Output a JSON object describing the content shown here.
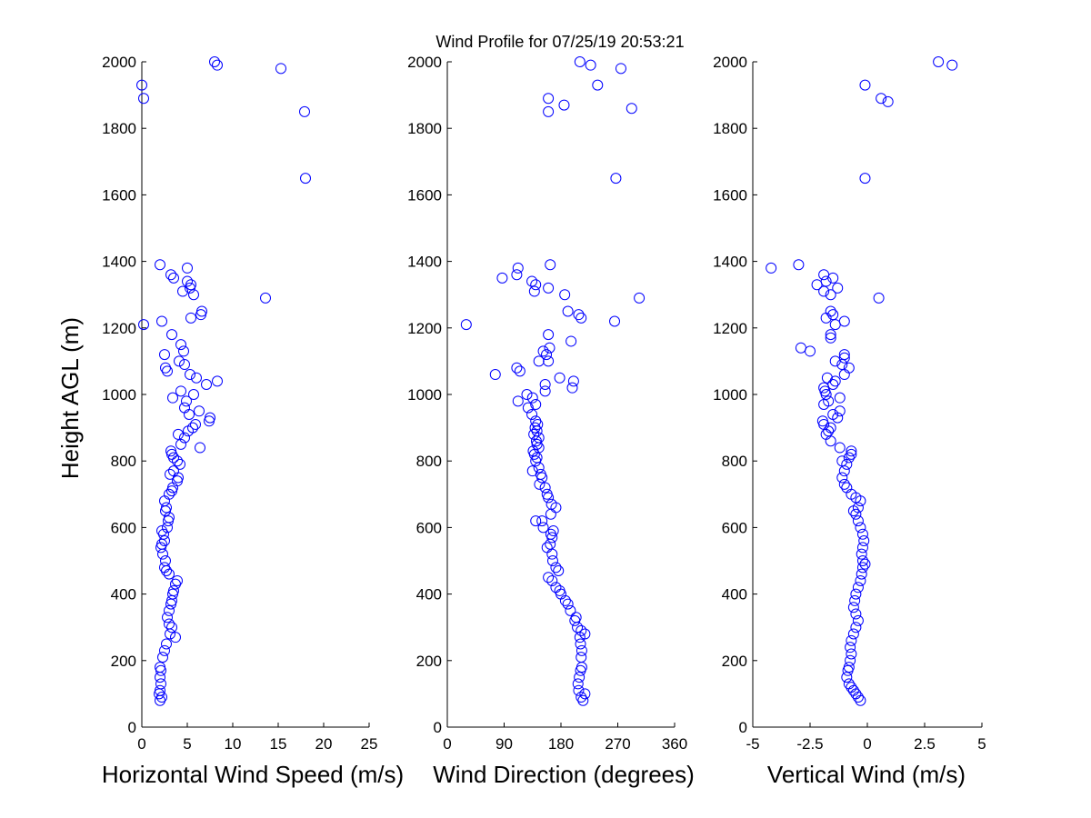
{
  "figure": {
    "title": "Wind Profile for  07/25/19 20:53:21",
    "ylabel": "Height AGL (m)"
  },
  "colors": {
    "marker": "#0000ff",
    "axes": "#000000",
    "background": "#ffffff"
  },
  "chart_data": [
    {
      "type": "scatter",
      "xlabel": "Horizontal Wind Speed (m/s)",
      "ylabel": "Height AGL (m)",
      "xlim": [
        0,
        25
      ],
      "ylim": [
        0,
        2000
      ],
      "xticks": [
        0,
        5,
        10,
        15,
        20,
        25
      ],
      "xtick_labels": [
        "0",
        "5",
        "10",
        "15",
        "20",
        "25"
      ],
      "yticks": [
        0,
        200,
        400,
        600,
        800,
        1000,
        1200,
        1400,
        1600,
        1800,
        2000
      ],
      "ytick_labels": [
        "0",
        "200",
        "400",
        "600",
        "800",
        "1000",
        "1200",
        "1400",
        "1600",
        "1800",
        "2000"
      ],
      "points": [
        [
          2,
          80
        ],
        [
          2.2,
          90
        ],
        [
          1.9,
          100
        ],
        [
          2,
          110
        ],
        [
          2.1,
          130
        ],
        [
          2,
          150
        ],
        [
          2.1,
          170
        ],
        [
          2,
          180
        ],
        [
          2.3,
          210
        ],
        [
          2.5,
          230
        ],
        [
          2.7,
          250
        ],
        [
          3.7,
          270
        ],
        [
          3.1,
          280
        ],
        [
          3.3,
          300
        ],
        [
          3,
          310
        ],
        [
          2.8,
          330
        ],
        [
          3,
          350
        ],
        [
          3.2,
          370
        ],
        [
          3.3,
          380
        ],
        [
          3.4,
          400
        ],
        [
          3.5,
          410
        ],
        [
          3.7,
          430
        ],
        [
          3.9,
          440
        ],
        [
          3,
          460
        ],
        [
          2.7,
          470
        ],
        [
          2.5,
          480
        ],
        [
          2.6,
          500
        ],
        [
          2.3,
          520
        ],
        [
          2.1,
          540
        ],
        [
          2.2,
          550
        ],
        [
          2.5,
          560
        ],
        [
          2.4,
          580
        ],
        [
          2.2,
          590
        ],
        [
          2.8,
          600
        ],
        [
          2.9,
          620
        ],
        [
          3,
          630
        ],
        [
          2.6,
          650
        ],
        [
          2.7,
          660
        ],
        [
          2.5,
          680
        ],
        [
          3,
          700
        ],
        [
          3.3,
          710
        ],
        [
          3.4,
          720
        ],
        [
          3.9,
          740
        ],
        [
          4,
          750
        ],
        [
          3.1,
          760
        ],
        [
          3.5,
          770
        ],
        [
          4.2,
          790
        ],
        [
          3.9,
          800
        ],
        [
          3.5,
          810
        ],
        [
          3.3,
          820
        ],
        [
          3.2,
          830
        ],
        [
          6.4,
          840
        ],
        [
          4.3,
          850
        ],
        [
          4.7,
          870
        ],
        [
          4,
          880
        ],
        [
          5.1,
          890
        ],
        [
          5.6,
          900
        ],
        [
          5.9,
          910
        ],
        [
          7.4,
          920
        ],
        [
          7.5,
          930
        ],
        [
          5.2,
          940
        ],
        [
          6.3,
          950
        ],
        [
          4.7,
          960
        ],
        [
          4.9,
          980
        ],
        [
          3.4,
          990
        ],
        [
          5.7,
          1000
        ],
        [
          4.3,
          1010
        ],
        [
          7.1,
          1030
        ],
        [
          8.3,
          1040
        ],
        [
          6,
          1050
        ],
        [
          5.3,
          1060
        ],
        [
          2.8,
          1070
        ],
        [
          2.6,
          1080
        ],
        [
          4.7,
          1090
        ],
        [
          4.1,
          1100
        ],
        [
          2.5,
          1120
        ],
        [
          4.6,
          1130
        ],
        [
          4.3,
          1150
        ],
        [
          3.3,
          1180
        ],
        [
          0.2,
          1210
        ],
        [
          2.2,
          1220
        ],
        [
          5.4,
          1230
        ],
        [
          6.5,
          1240
        ],
        [
          6.6,
          1250
        ],
        [
          13.6,
          1290
        ],
        [
          5.7,
          1300
        ],
        [
          4.5,
          1310
        ],
        [
          5.3,
          1320
        ],
        [
          5.4,
          1330
        ],
        [
          5,
          1340
        ],
        [
          3.5,
          1350
        ],
        [
          3.2,
          1360
        ],
        [
          5,
          1380
        ],
        [
          2,
          1390
        ],
        [
          18,
          1650
        ],
        [
          17.9,
          1850
        ],
        [
          0.2,
          1890
        ],
        [
          0,
          1930
        ],
        [
          15.3,
          1980
        ],
        [
          8.3,
          1990
        ],
        [
          8,
          2000
        ]
      ]
    },
    {
      "type": "scatter",
      "xlabel": "Wind Direction (degrees)",
      "xlim": [
        0,
        360
      ],
      "ylim": [
        0,
        2000
      ],
      "xticks": [
        0,
        90,
        180,
        270,
        360
      ],
      "xtick_labels": [
        "0",
        "90",
        "180",
        "270",
        "360"
      ],
      "yticks": [
        0,
        200,
        400,
        600,
        800,
        1000,
        1200,
        1400,
        1600,
        1800,
        2000
      ],
      "ytick_labels": [
        "0",
        "200",
        "400",
        "600",
        "800",
        "1000",
        "1200",
        "1400",
        "1600",
        "1800",
        "2000"
      ],
      "points": [
        [
          215,
          80
        ],
        [
          212,
          90
        ],
        [
          218,
          100
        ],
        [
          208,
          110
        ],
        [
          207,
          130
        ],
        [
          209,
          150
        ],
        [
          211,
          170
        ],
        [
          213,
          180
        ],
        [
          212,
          210
        ],
        [
          213,
          230
        ],
        [
          211,
          250
        ],
        [
          210,
          270
        ],
        [
          218,
          280
        ],
        [
          212,
          290
        ],
        [
          206,
          300
        ],
        [
          202,
          320
        ],
        [
          204,
          330
        ],
        [
          195,
          350
        ],
        [
          191,
          370
        ],
        [
          187,
          380
        ],
        [
          180,
          400
        ],
        [
          178,
          410
        ],
        [
          172,
          420
        ],
        [
          166,
          440
        ],
        [
          160,
          450
        ],
        [
          176,
          470
        ],
        [
          172,
          480
        ],
        [
          167,
          500
        ],
        [
          166,
          520
        ],
        [
          158,
          540
        ],
        [
          163,
          550
        ],
        [
          166,
          570
        ],
        [
          164,
          580
        ],
        [
          168,
          590
        ],
        [
          152,
          600
        ],
        [
          140,
          620
        ],
        [
          150,
          620
        ],
        [
          164,
          640
        ],
        [
          172,
          660
        ],
        [
          165,
          670
        ],
        [
          160,
          690
        ],
        [
          158,
          700
        ],
        [
          155,
          720
        ],
        [
          146,
          730
        ],
        [
          150,
          750
        ],
        [
          148,
          760
        ],
        [
          135,
          770
        ],
        [
          145,
          780
        ],
        [
          140,
          800
        ],
        [
          142,
          810
        ],
        [
          138,
          820
        ],
        [
          136,
          830
        ],
        [
          145,
          840
        ],
        [
          142,
          850
        ],
        [
          141,
          860
        ],
        [
          145,
          870
        ],
        [
          137,
          880
        ],
        [
          142,
          890
        ],
        [
          139,
          900
        ],
        [
          143,
          910
        ],
        [
          140,
          920
        ],
        [
          134,
          940
        ],
        [
          128,
          960
        ],
        [
          140,
          970
        ],
        [
          112,
          980
        ],
        [
          135,
          990
        ],
        [
          126,
          1000
        ],
        [
          155,
          1010
        ],
        [
          155,
          1030
        ],
        [
          198,
          1020
        ],
        [
          200,
          1040
        ],
        [
          178,
          1050
        ],
        [
          76,
          1060
        ],
        [
          115,
          1070
        ],
        [
          110,
          1080
        ],
        [
          160,
          1100
        ],
        [
          145,
          1100
        ],
        [
          157,
          1120
        ],
        [
          152,
          1130
        ],
        [
          162,
          1140
        ],
        [
          196,
          1160
        ],
        [
          160,
          1180
        ],
        [
          30,
          1210
        ],
        [
          265,
          1220
        ],
        [
          212,
          1230
        ],
        [
          208,
          1240
        ],
        [
          191,
          1250
        ],
        [
          304,
          1290
        ],
        [
          186,
          1300
        ],
        [
          138,
          1310
        ],
        [
          160,
          1320
        ],
        [
          140,
          1330
        ],
        [
          134,
          1340
        ],
        [
          87,
          1350
        ],
        [
          110,
          1360
        ],
        [
          112,
          1380
        ],
        [
          163,
          1390
        ],
        [
          267,
          1650
        ],
        [
          160,
          1850
        ],
        [
          160,
          1890
        ],
        [
          185,
          1870
        ],
        [
          292,
          1860
        ],
        [
          238,
          1930
        ],
        [
          275,
          1980
        ],
        [
          227,
          1990
        ],
        [
          210,
          2000
        ]
      ]
    },
    {
      "type": "scatter",
      "xlabel": "Vertical Wind (m/s)",
      "xlim": [
        -5,
        5
      ],
      "ylim": [
        0,
        2000
      ],
      "xticks": [
        -5,
        -2.5,
        0,
        2.5,
        5
      ],
      "xtick_labels": [
        "-5",
        "-2.5",
        "0",
        "2.5",
        "5"
      ],
      "yticks": [
        0,
        200,
        400,
        600,
        800,
        1000,
        1200,
        1400,
        1600,
        1800,
        2000
      ],
      "ytick_labels": [
        "0",
        "200",
        "400",
        "600",
        "800",
        "1000",
        "1200",
        "1400",
        "1600",
        "1800",
        "2000"
      ],
      "points": [
        [
          -0.3,
          80
        ],
        [
          -0.4,
          90
        ],
        [
          -0.5,
          100
        ],
        [
          -0.6,
          110
        ],
        [
          -0.7,
          120
        ],
        [
          -0.8,
          130
        ],
        [
          -0.9,
          150
        ],
        [
          -0.85,
          170
        ],
        [
          -0.8,
          180
        ],
        [
          -0.75,
          200
        ],
        [
          -0.7,
          220
        ],
        [
          -0.75,
          240
        ],
        [
          -0.7,
          260
        ],
        [
          -0.6,
          280
        ],
        [
          -0.5,
          300
        ],
        [
          -0.4,
          320
        ],
        [
          -0.5,
          340
        ],
        [
          -0.6,
          360
        ],
        [
          -0.55,
          380
        ],
        [
          -0.5,
          400
        ],
        [
          -0.4,
          420
        ],
        [
          -0.3,
          440
        ],
        [
          -0.25,
          460
        ],
        [
          -0.2,
          480
        ],
        [
          -0.1,
          490
        ],
        [
          -0.2,
          500
        ],
        [
          -0.25,
          520
        ],
        [
          -0.2,
          540
        ],
        [
          -0.15,
          560
        ],
        [
          -0.2,
          580
        ],
        [
          -0.3,
          600
        ],
        [
          -0.4,
          620
        ],
        [
          -0.5,
          640
        ],
        [
          -0.6,
          650
        ],
        [
          -0.4,
          660
        ],
        [
          -0.3,
          680
        ],
        [
          -0.5,
          690
        ],
        [
          -0.7,
          700
        ],
        [
          -0.9,
          720
        ],
        [
          -1,
          730
        ],
        [
          -1.1,
          750
        ],
        [
          -1,
          770
        ],
        [
          -0.9,
          790
        ],
        [
          -1.1,
          800
        ],
        [
          -0.8,
          810
        ],
        [
          -0.7,
          820
        ],
        [
          -0.7,
          830
        ],
        [
          -1.2,
          840
        ],
        [
          -1.6,
          860
        ],
        [
          -1.8,
          880
        ],
        [
          -1.7,
          890
        ],
        [
          -1.6,
          900
        ],
        [
          -1.9,
          910
        ],
        [
          -1.95,
          920
        ],
        [
          -1.3,
          930
        ],
        [
          -1.5,
          940
        ],
        [
          -1.2,
          950
        ],
        [
          -1.9,
          970
        ],
        [
          -1.7,
          980
        ],
        [
          -1.2,
          990
        ],
        [
          -1.8,
          1000
        ],
        [
          -1.85,
          1010
        ],
        [
          -1.9,
          1020
        ],
        [
          -1.5,
          1030
        ],
        [
          -1.4,
          1040
        ],
        [
          -1.75,
          1050
        ],
        [
          -1,
          1060
        ],
        [
          -0.8,
          1080
        ],
        [
          -1.1,
          1090
        ],
        [
          -1.4,
          1100
        ],
        [
          -1,
          1110
        ],
        [
          -1,
          1120
        ],
        [
          -2.5,
          1130
        ],
        [
          -2.9,
          1140
        ],
        [
          -1.6,
          1170
        ],
        [
          -1.6,
          1180
        ],
        [
          -1.4,
          1210
        ],
        [
          -1,
          1220
        ],
        [
          -1.8,
          1230
        ],
        [
          -1.6,
          1250
        ],
        [
          -1.5,
          1240
        ],
        [
          0.5,
          1290
        ],
        [
          -1.6,
          1300
        ],
        [
          -1.9,
          1310
        ],
        [
          -1.3,
          1320
        ],
        [
          -2.2,
          1330
        ],
        [
          -1.8,
          1340
        ],
        [
          -1.5,
          1350
        ],
        [
          -1.9,
          1360
        ],
        [
          -4.2,
          1380
        ],
        [
          -3,
          1390
        ],
        [
          -0.1,
          1650
        ],
        [
          0.9,
          1880
        ],
        [
          0.6,
          1890
        ],
        [
          -0.1,
          1930
        ],
        [
          3.7,
          1990
        ],
        [
          3.1,
          2000
        ]
      ]
    }
  ]
}
